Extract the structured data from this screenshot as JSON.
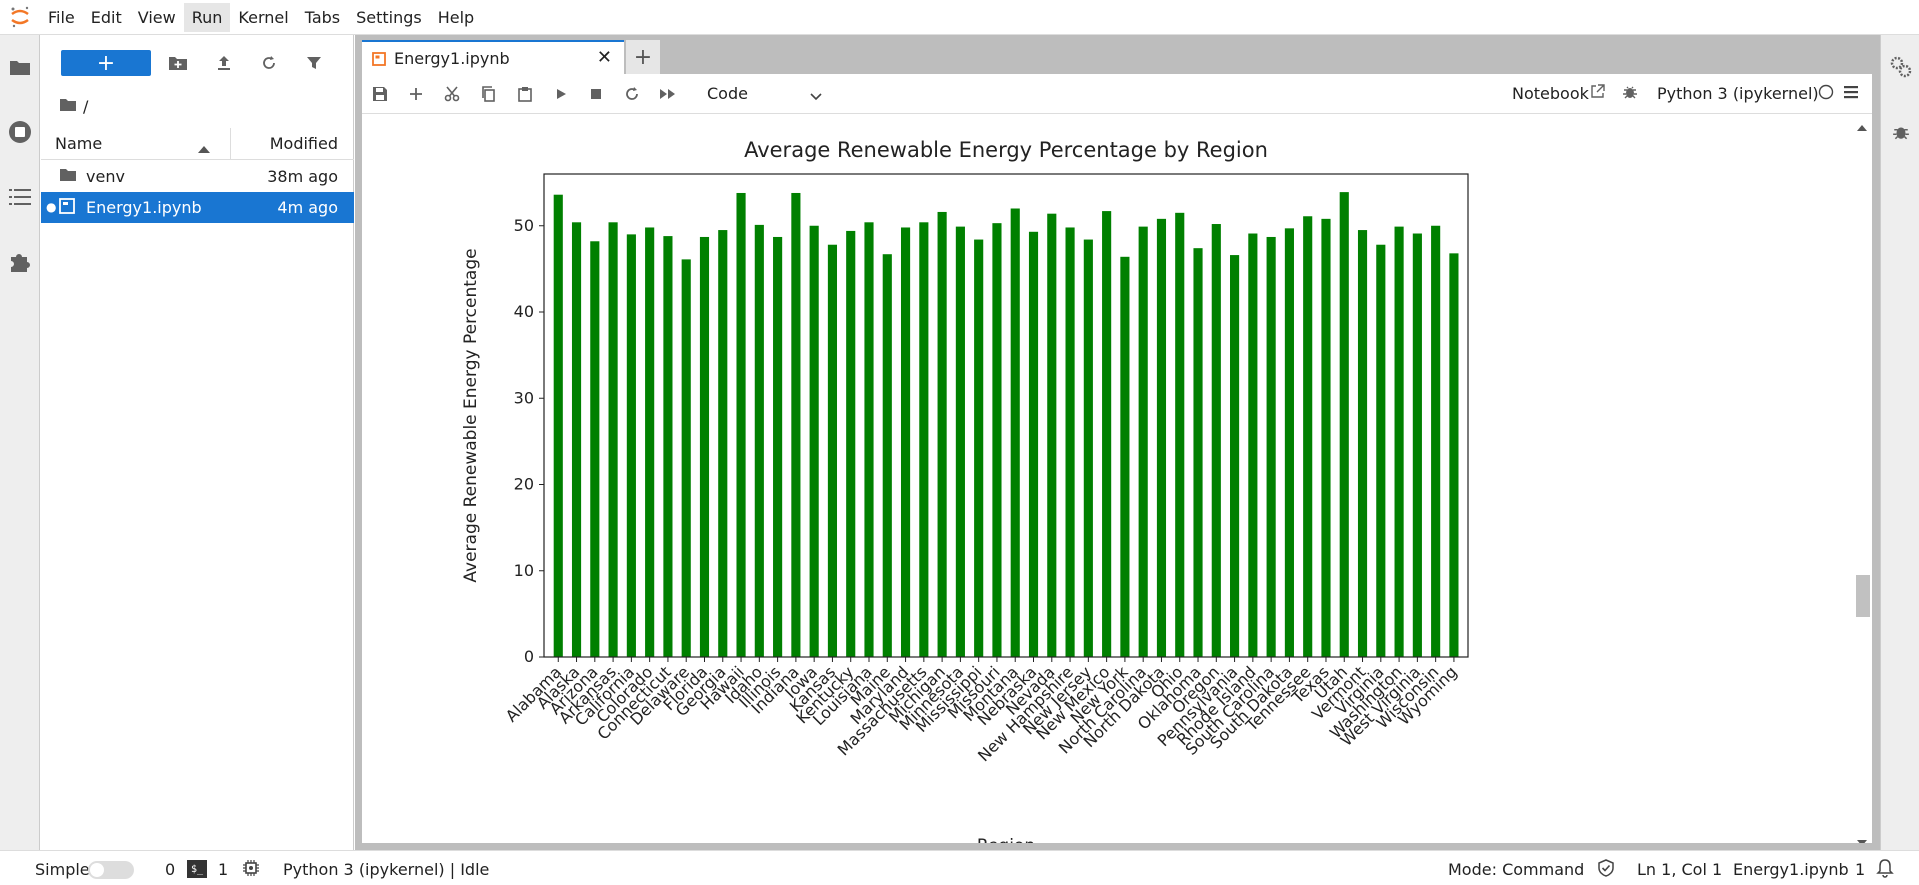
{
  "menu": [
    "File",
    "Edit",
    "View",
    "Run",
    "Kernel",
    "Tabs",
    "Settings",
    "Help"
  ],
  "active_menu": "Run",
  "filebrowser": {
    "breadcrumb": "/",
    "columns": {
      "name": "Name",
      "modified": "Modified"
    },
    "files": [
      {
        "name": "venv",
        "modified": "38m ago",
        "type": "folder"
      },
      {
        "name": "Energy1.ipynb",
        "modified": "4m ago",
        "type": "notebook",
        "selected": true
      }
    ]
  },
  "tab": {
    "label": "Energy1.ipynb"
  },
  "toolbar": {
    "cell_type": "Code",
    "notebook_label": "Notebook",
    "kernel_name": "Python 3 (ipykernel)"
  },
  "chart_data": {
    "type": "bar",
    "title": "Average Renewable Energy Percentage by Region",
    "xlabel": "Region",
    "ylabel": "Average Renewable Energy Percentage",
    "ylim": [
      0,
      56
    ],
    "yticks": [
      0,
      10,
      20,
      30,
      40,
      50
    ],
    "color": "#008000",
    "categories": [
      "Alabama",
      "Alaska",
      "Arizona",
      "Arkansas",
      "California",
      "Colorado",
      "Connecticut",
      "Delaware",
      "Florida",
      "Georgia",
      "Hawaii",
      "Idaho",
      "Illinois",
      "Indiana",
      "Iowa",
      "Kansas",
      "Kentucky",
      "Louisiana",
      "Maine",
      "Maryland",
      "Massachusetts",
      "Michigan",
      "Minnesota",
      "Mississippi",
      "Missouri",
      "Montana",
      "Nebraska",
      "Nevada",
      "New Hampshire",
      "New Jersey",
      "New Mexico",
      "New York",
      "North Carolina",
      "North Dakota",
      "Ohio",
      "Oklahoma",
      "Oregon",
      "Pennsylvania",
      "Rhode Island",
      "South Carolina",
      "South Dakota",
      "Tennessee",
      "Texas",
      "Utah",
      "Vermont",
      "Virginia",
      "Washington",
      "West Virginia",
      "Wisconsin",
      "Wyoming"
    ],
    "values": [
      53.6,
      50.4,
      48.2,
      50.4,
      49.0,
      49.8,
      48.8,
      46.1,
      48.7,
      49.5,
      53.8,
      50.1,
      48.7,
      53.8,
      50.0,
      47.8,
      49.4,
      50.4,
      46.7,
      49.8,
      50.4,
      51.6,
      49.9,
      48.4,
      50.3,
      52.0,
      49.3,
      51.4,
      49.8,
      48.4,
      51.7,
      46.4,
      49.9,
      50.8,
      51.5,
      47.4,
      50.2,
      46.6,
      49.1,
      48.7,
      49.7,
      51.1,
      50.8,
      53.9,
      49.5,
      47.8,
      49.9,
      49.1,
      50.0,
      46.8
    ]
  },
  "status": {
    "mode_label": "Simple",
    "count_a": "0",
    "count_b": "1",
    "kernel_status": "Python 3 (ipykernel) | Idle",
    "mode": "Mode: Command",
    "cursor": "Ln 1, Col 1",
    "file": "Energy1.ipynb",
    "notifications": "1"
  }
}
